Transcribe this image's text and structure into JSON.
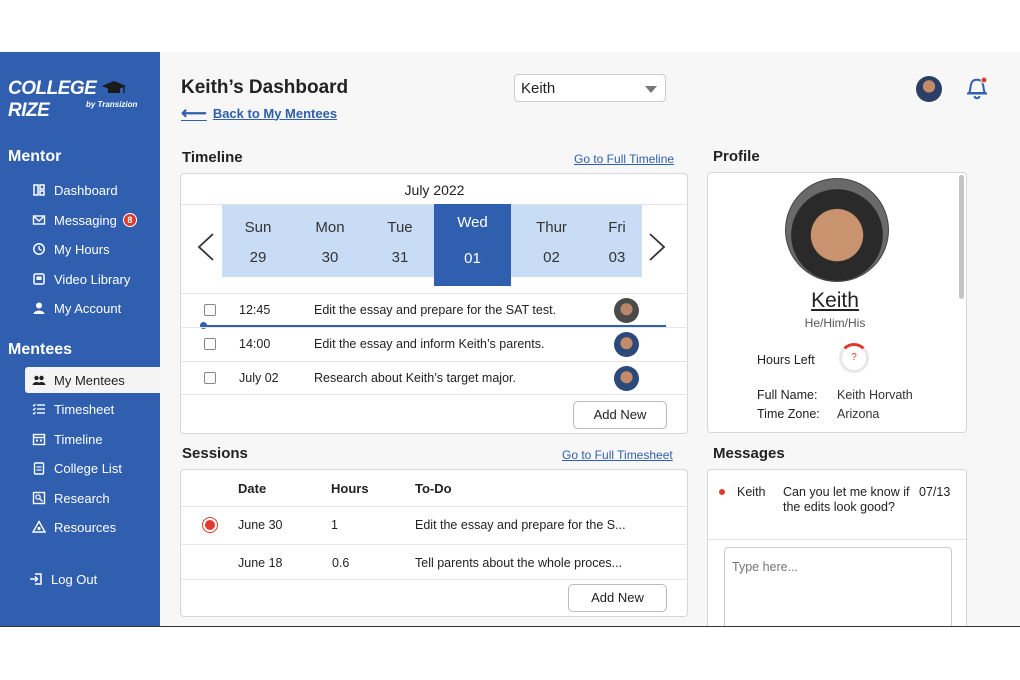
{
  "brand": {
    "name": "COLLEGE RIZE",
    "name_left": "COLLEGE",
    "name_right": "RIZE",
    "sub": "by Transizion"
  },
  "sidebar": {
    "mentor_title": "Mentor",
    "mentor_items": [
      {
        "label": "Dashboard",
        "icon": "dashboard-icon"
      },
      {
        "label": "Messaging",
        "icon": "mail-icon",
        "badge": "8"
      },
      {
        "label": "My Hours",
        "icon": "clock-icon"
      },
      {
        "label": "Video Library",
        "icon": "video-icon"
      },
      {
        "label": "My Account",
        "icon": "user-icon"
      }
    ],
    "mentees_title": "Mentees",
    "mentee_items": [
      {
        "label": "My Mentees",
        "icon": "group-icon",
        "active": true
      },
      {
        "label": "Timesheet",
        "icon": "list-icon"
      },
      {
        "label": "Timeline",
        "icon": "calendar-icon"
      },
      {
        "label": "College List",
        "icon": "clipboard-icon"
      },
      {
        "label": "Research",
        "icon": "research-icon"
      },
      {
        "label": "Resources",
        "icon": "resources-icon"
      }
    ],
    "logout": "Log Out"
  },
  "header": {
    "title": "Keith’s Dashboard",
    "back_link": "Back to My Mentees",
    "mentee_select": "Keith"
  },
  "timeline": {
    "title": "Timeline",
    "link": "Go to Full Timeline",
    "month": "July 2022",
    "days": [
      {
        "name": "Sun",
        "date": "29"
      },
      {
        "name": "Mon",
        "date": "30"
      },
      {
        "name": "Tue",
        "date": "31"
      },
      {
        "name": "Wed",
        "date": "01",
        "active": true
      },
      {
        "name": "Thur",
        "date": "02"
      },
      {
        "name": "Fri",
        "date": "03"
      }
    ],
    "tasks": [
      {
        "time": "12:45",
        "text": "Edit the essay and prepare for the SAT test."
      },
      {
        "time": "14:00",
        "text": "Edit the essay and inform Keith’s parents."
      },
      {
        "time": "July 02",
        "text": "Research about Keith’s target major."
      }
    ],
    "add_button": "Add New"
  },
  "sessions": {
    "title": "Sessions",
    "link": "Go to Full Timesheet",
    "headers": {
      "date": "Date",
      "hours": "Hours",
      "todo": "To-Do"
    },
    "rows": [
      {
        "date": "June 30",
        "hours": "1",
        "todo": "Edit the essay and prepare for the S..."
      },
      {
        "date": "June 18",
        "hours": "0.6",
        "todo": "Tell parents about the whole proces..."
      }
    ],
    "add_button": "Add New"
  },
  "profile": {
    "title": "Profile",
    "name": "Keith",
    "pronouns": "He/Him/His",
    "hours_left_label": "Hours Left",
    "hours_left_value": "?",
    "full_name_label": "Full Name:",
    "full_name": "Keith Horvath",
    "time_zone_label": "Time Zone:",
    "time_zone": "Arizona"
  },
  "messages": {
    "title": "Messages",
    "items": [
      {
        "from": "Keith",
        "text": "Can you let me know if the edits look good?",
        "date": "07/13"
      }
    ],
    "input_placeholder": "Type here..."
  },
  "colors": {
    "brand": "#2f5fae",
    "highlight": "#c9dcf6",
    "alert": "#e03a2e"
  }
}
